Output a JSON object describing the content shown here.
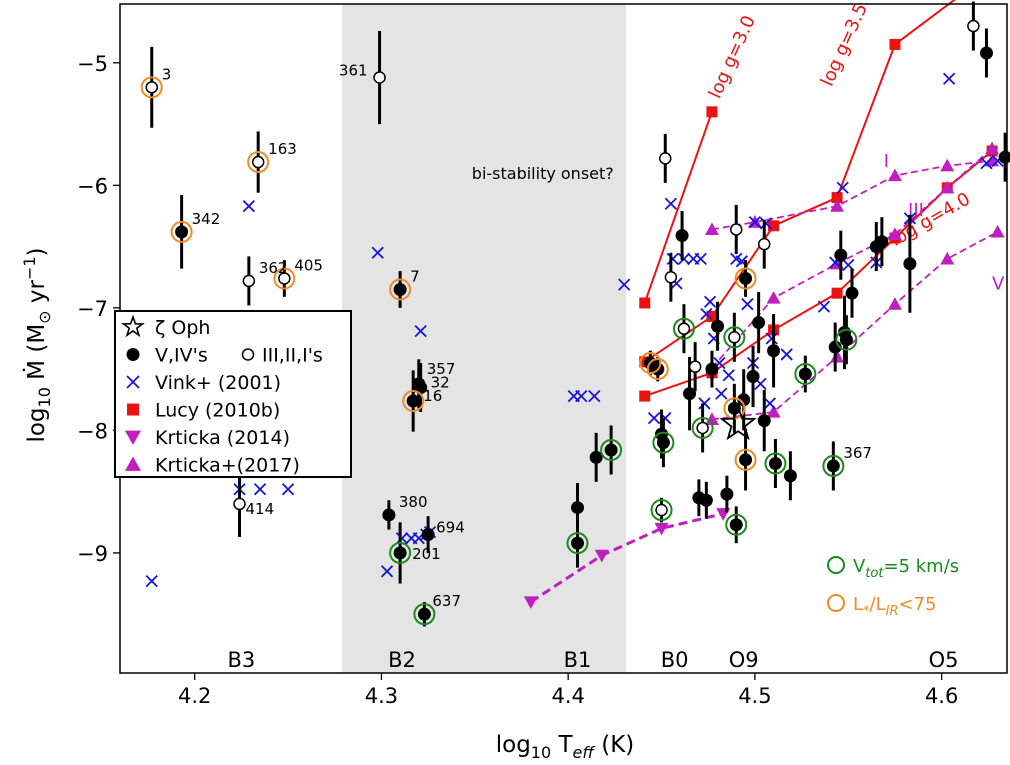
{
  "chart_data": {
    "type": "scatter",
    "xlabel_main": "log",
    "xlabel_sub": "10",
    "xlabel_rest": " T",
    "xlabel_sub2": "eff",
    "xlabel_end": " (K)",
    "ylabel_main": "log",
    "ylabel_sub": "10",
    "ylabel_rest": " Ṁ (M",
    "ylabel_sun": "⊙",
    "ylabel_unit": "  yr",
    "ylabel_sup": "−1",
    "ylabel_end": ")",
    "xlim": [
      4.16,
      4.635
    ],
    "ylim": [
      -9.98,
      -4.52
    ],
    "x_ticks": [
      {
        "v": 4.2,
        "label": "4.2"
      },
      {
        "v": 4.3,
        "label": "4.3"
      },
      {
        "v": 4.4,
        "label": "4.4"
      },
      {
        "v": 4.5,
        "label": "4.5"
      },
      {
        "v": 4.6,
        "label": "4.6"
      }
    ],
    "y_ticks": [
      {
        "v": -5,
        "label": "−5"
      },
      {
        "v": -6,
        "label": "−6"
      },
      {
        "v": -7,
        "label": "−7"
      },
      {
        "v": -8,
        "label": "−8"
      },
      {
        "v": -9,
        "label": "−9"
      }
    ],
    "shaded_region": {
      "x0": 4.279,
      "x1": 4.431,
      "label": "bi-stability onset?",
      "label_x": 4.335,
      "label_y": -5.95
    },
    "spectral_labels": [
      {
        "label": "B3",
        "x": 4.225
      },
      {
        "label": "B2",
        "x": 4.311
      },
      {
        "label": "B1",
        "x": 4.405
      },
      {
        "label": "B0",
        "x": 4.457
      },
      {
        "label": "O9",
        "x": 4.494
      },
      {
        "label": "O5",
        "x": 4.601
      }
    ],
    "zeta_oph": {
      "label": "ζ Oph",
      "x": 4.491,
      "y": -7.95
    },
    "filled_points": [
      {
        "x": 4.193,
        "y": -6.38,
        "err": 0.3,
        "orange": true,
        "label": "342"
      },
      {
        "x": 4.31,
        "y": -6.85,
        "err": 0.15,
        "orange": true,
        "label": "7"
      },
      {
        "x": 4.32,
        "y": -7.62,
        "err": 0.2,
        "label": "357"
      },
      {
        "x": 4.321,
        "y": -7.65,
        "err": 0.2,
        "label": "32"
      },
      {
        "x": 4.317,
        "y": -7.76,
        "err": 0.25,
        "orange": true,
        "label": "16"
      },
      {
        "x": 4.304,
        "y": -8.69,
        "err": 0.12,
        "label": "380"
      },
      {
        "x": 4.31,
        "y": -9.0,
        "err": 0.25,
        "green": true,
        "label": "201"
      },
      {
        "x": 4.325,
        "y": -8.85,
        "err": 0.15,
        "label": "694"
      },
      {
        "x": 4.323,
        "y": -9.5,
        "err": 0.1,
        "green": true,
        "label": "637"
      },
      {
        "x": 4.405,
        "y": -8.63,
        "err": 0.2
      },
      {
        "x": 4.415,
        "y": -8.22,
        "err": 0.2
      },
      {
        "x": 4.405,
        "y": -8.92,
        "err": 0.2,
        "green": true
      },
      {
        "x": 4.423,
        "y": -8.16,
        "err": 0.2,
        "green": true
      },
      {
        "x": 4.444,
        "y": -7.45,
        "err": 0.1,
        "orange": true
      },
      {
        "x": 4.448,
        "y": -7.5,
        "err": 0.1,
        "orange": true
      },
      {
        "x": 4.45,
        "y": -8.03,
        "err": 0.2
      },
      {
        "x": 4.451,
        "y": -8.1,
        "err": 0.2,
        "green": true
      },
      {
        "x": 4.461,
        "y": -6.41,
        "err": 0.2
      },
      {
        "x": 4.465,
        "y": -7.7,
        "err": 0.3
      },
      {
        "x": 4.47,
        "y": -8.55,
        "err": 0.15
      },
      {
        "x": 4.474,
        "y": -8.57,
        "err": 0.15
      },
      {
        "x": 4.477,
        "y": -7.5,
        "err": 0.15
      },
      {
        "x": 4.48,
        "y": -7.15,
        "err": 0.2
      },
      {
        "x": 4.485,
        "y": -8.52,
        "err": 0.15
      },
      {
        "x": 4.489,
        "y": -7.82,
        "err": 0.2,
        "orange": true
      },
      {
        "x": 4.49,
        "y": -8.77,
        "err": 0.15,
        "green": true
      },
      {
        "x": 4.494,
        "y": -7.75,
        "err": 0.25
      },
      {
        "x": 4.495,
        "y": -8.24,
        "err": 0.25,
        "orange": true
      },
      {
        "x": 4.495,
        "y": -6.76,
        "err": 0.15,
        "orange": true
      },
      {
        "x": 4.499,
        "y": -7.56,
        "err": 0.25
      },
      {
        "x": 4.502,
        "y": -7.12,
        "err": 0.25
      },
      {
        "x": 4.505,
        "y": -7.92,
        "err": 0.25
      },
      {
        "x": 4.51,
        "y": -7.35,
        "err": 0.3
      },
      {
        "x": 4.511,
        "y": -8.27,
        "err": 0.2,
        "green": true
      },
      {
        "x": 4.519,
        "y": -8.37,
        "err": 0.2
      },
      {
        "x": 4.527,
        "y": -7.54,
        "err": 0.15,
        "green": true
      },
      {
        "x": 4.542,
        "y": -8.29,
        "err": 0.2,
        "green": true,
        "label": "367"
      },
      {
        "x": 4.543,
        "y": -7.32,
        "err": 0.2
      },
      {
        "x": 4.546,
        "y": -6.57,
        "err": 0.2
      },
      {
        "x": 4.548,
        "y": -7.2,
        "err": 0.3
      },
      {
        "x": 4.549,
        "y": -7.26,
        "err": 0.2,
        "green": true
      },
      {
        "x": 4.552,
        "y": -6.88,
        "err": 0.2
      },
      {
        "x": 4.565,
        "y": -6.5,
        "err": 0.2
      },
      {
        "x": 4.568,
        "y": -6.46,
        "err": 0.2
      },
      {
        "x": 4.583,
        "y": -6.64,
        "err": 0.4
      },
      {
        "x": 4.624,
        "y": -4.92,
        "err": 0.2
      },
      {
        "x": 4.634,
        "y": -5.77,
        "err": 0.2
      }
    ],
    "open_points": [
      {
        "x": 4.177,
        "y": -5.2,
        "err": 0.33,
        "orange": true,
        "label": "3"
      },
      {
        "x": 4.234,
        "y": -5.81,
        "err": 0.25,
        "orange": true,
        "label": "163"
      },
      {
        "x": 4.229,
        "y": -6.78,
        "err": 0.2,
        "label": "362"
      },
      {
        "x": 4.248,
        "y": -6.76,
        "err": 0.15,
        "orange": true,
        "label": "405"
      },
      {
        "x": 4.224,
        "y": -8.6,
        "err": 0.27,
        "label": "414"
      },
      {
        "x": 4.299,
        "y": -5.12,
        "err": 0.38,
        "label": "361"
      },
      {
        "x": 4.45,
        "y": -8.65,
        "err": 0.1,
        "green": true
      },
      {
        "x": 4.452,
        "y": -5.78,
        "err": 0.2
      },
      {
        "x": 4.455,
        "y": -6.75,
        "err": 0.2
      },
      {
        "x": 4.462,
        "y": -7.17,
        "err": 0.2,
        "green": true
      },
      {
        "x": 4.468,
        "y": -7.48,
        "err": 0.2
      },
      {
        "x": 4.472,
        "y": -7.98,
        "err": 0.2,
        "green": true
      },
      {
        "x": 4.489,
        "y": -7.24,
        "err": 0.2,
        "green": true
      },
      {
        "x": 4.49,
        "y": -6.36,
        "err": 0.2
      },
      {
        "x": 4.505,
        "y": -6.48,
        "err": 0.2
      },
      {
        "x": 4.617,
        "y": -4.7,
        "err": 0.2
      }
    ],
    "vink_points": [
      {
        "x": 4.177,
        "y": -9.23
      },
      {
        "x": 4.229,
        "y": -6.17
      },
      {
        "x": 4.224,
        "y": -8.48
      },
      {
        "x": 4.235,
        "y": -8.48
      },
      {
        "x": 4.25,
        "y": -8.48
      },
      {
        "x": 4.298,
        "y": -6.55
      },
      {
        "x": 4.321,
        "y": -7.19
      },
      {
        "x": 4.303,
        "y": -9.15
      },
      {
        "x": 4.311,
        "y": -8.88
      },
      {
        "x": 4.316,
        "y": -8.88
      },
      {
        "x": 4.32,
        "y": -8.88
      },
      {
        "x": 4.324,
        "y": -8.85
      },
      {
        "x": 4.326,
        "y": -8.83
      },
      {
        "x": 4.403,
        "y": -7.72
      },
      {
        "x": 4.407,
        "y": -7.72
      },
      {
        "x": 4.414,
        "y": -7.72
      },
      {
        "x": 4.43,
        "y": -6.81
      },
      {
        "x": 4.446,
        "y": -7.9
      },
      {
        "x": 4.452,
        "y": -7.9
      },
      {
        "x": 4.455,
        "y": -6.15
      },
      {
        "x": 4.456,
        "y": -6.6
      },
      {
        "x": 4.462,
        "y": -6.6
      },
      {
        "x": 4.467,
        "y": -6.6
      },
      {
        "x": 4.471,
        "y": -6.6
      },
      {
        "x": 4.458,
        "y": -6.8
      },
      {
        "x": 4.476,
        "y": -6.95
      },
      {
        "x": 4.49,
        "y": -6.6
      },
      {
        "x": 4.493,
        "y": -6.62
      },
      {
        "x": 4.496,
        "y": -6.97
      },
      {
        "x": 4.474,
        "y": -7.05
      },
      {
        "x": 4.478,
        "y": -7.25
      },
      {
        "x": 4.481,
        "y": -7.45
      },
      {
        "x": 4.486,
        "y": -7.55
      },
      {
        "x": 4.499,
        "y": -7.45
      },
      {
        "x": 4.503,
        "y": -7.62
      },
      {
        "x": 4.508,
        "y": -7.78
      },
      {
        "x": 4.473,
        "y": -7.78
      },
      {
        "x": 4.482,
        "y": -7.7
      },
      {
        "x": 4.5,
        "y": -6.3
      },
      {
        "x": 4.506,
        "y": -6.31
      },
      {
        "x": 4.509,
        "y": -7.25
      },
      {
        "x": 4.517,
        "y": -7.38
      },
      {
        "x": 4.537,
        "y": -6.99
      },
      {
        "x": 4.543,
        "y": -6.63
      },
      {
        "x": 4.547,
        "y": -6.02
      },
      {
        "x": 4.55,
        "y": -6.65
      },
      {
        "x": 4.565,
        "y": -6.63
      },
      {
        "x": 4.583,
        "y": -6.27
      },
      {
        "x": 4.604,
        "y": -5.13
      },
      {
        "x": 4.624,
        "y": -5.82
      },
      {
        "x": 4.63,
        "y": -5.8
      }
    ],
    "lucy_series": [
      {
        "points": [
          [
            4.441,
            -6.96
          ],
          [
            4.477,
            -5.4
          ]
        ],
        "label": "log g=3.0",
        "label_x": 4.481,
        "label_y": -5.3,
        "label_angle": -66
      },
      {
        "points": [
          [
            4.441,
            -7.44
          ],
          [
            4.477,
            -7.07
          ],
          [
            4.51,
            -6.33
          ],
          [
            4.544,
            -6.1
          ],
          [
            4.575,
            -4.85
          ],
          [
            4.61,
            -4.45
          ]
        ],
        "label": "log g=3.5",
        "label_x": 4.541,
        "label_y": -5.2,
        "label_angle": -66
      },
      {
        "points": [
          [
            4.441,
            -7.72
          ],
          [
            4.477,
            -7.53
          ],
          [
            4.51,
            -7.18
          ],
          [
            4.544,
            -6.88
          ],
          [
            4.575,
            -6.43
          ],
          [
            4.603,
            -6.02
          ],
          [
            4.627,
            -5.72
          ]
        ],
        "label": "log g=4.0",
        "label_x": 4.575,
        "label_y": -6.5,
        "label_angle": -30
      }
    ],
    "krticka2014": [
      [
        4.38,
        -9.4
      ],
      [
        4.418,
        -9.02
      ],
      [
        4.45,
        -8.8
      ],
      [
        4.483,
        -8.68
      ]
    ],
    "krticka2017": [
      {
        "points": [
          [
            4.477,
            -6.36
          ],
          [
            4.5,
            -6.3
          ],
          [
            4.544,
            -6.17
          ],
          [
            4.575,
            -5.92
          ],
          [
            4.603,
            -5.84
          ],
          [
            4.627,
            -5.8
          ]
        ],
        "label": "I",
        "label_x": 4.569,
        "label_y": -5.85
      },
      {
        "points": [
          [
            4.477,
            -7.49
          ],
          [
            4.51,
            -6.92
          ],
          [
            4.544,
            -6.64
          ],
          [
            4.575,
            -6.4
          ],
          [
            4.603,
            -6.02
          ],
          [
            4.627,
            -5.7
          ]
        ],
        "label": "III",
        "label_x": 4.582,
        "label_y": -6.25
      },
      {
        "points": [
          [
            4.477,
            -7.91
          ],
          [
            4.51,
            -7.85
          ],
          [
            4.544,
            -7.4
          ],
          [
            4.575,
            -6.97
          ],
          [
            4.603,
            -6.6
          ],
          [
            4.63,
            -6.38
          ]
        ],
        "label": "V",
        "label_x": 4.627,
        "label_y": -6.85
      }
    ],
    "legend": {
      "items": [
        {
          "marker": "star",
          "label": "ζ Oph"
        },
        {
          "marker": "filled",
          "label": "V,IV's",
          "marker2": "open",
          "label2": "III,II,I's"
        },
        {
          "marker": "x",
          "label": "Vink+ (2001)"
        },
        {
          "marker": "square",
          "label": "Lucy (2010b)"
        },
        {
          "marker": "tri-down",
          "label": "Krticka (2014)"
        },
        {
          "marker": "tri-up",
          "label": "Krticka+(2017)"
        }
      ]
    },
    "circle_legend": {
      "green_main": "V",
      "green_sub": "tot",
      "green_rest": "=5 km/s",
      "orange_main": "L",
      "orange_sub1": "*",
      "orange_mid": "/L",
      "orange_sub2": "IR",
      "orange_rest": "<75"
    },
    "colors": {
      "filled": "#000000",
      "vink": "#1414dc",
      "lucy": "#ee1111",
      "krticka": "#bf1fbf",
      "green": "#1a8a1a",
      "orange": "#f08a24",
      "shade": "#e4e4e4"
    }
  }
}
